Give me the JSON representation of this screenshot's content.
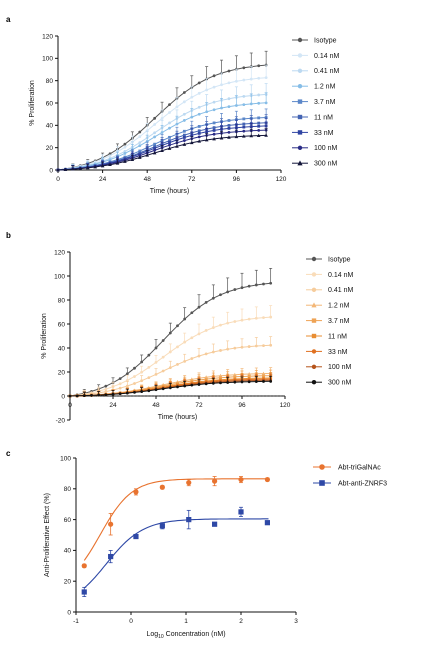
{
  "chart_data": [
    {
      "type": "line",
      "panel_label": "a",
      "xlabel": "Time (hours)",
      "ylabel": "% Proliferation",
      "xlim": [
        0,
        120
      ],
      "ylim": [
        0,
        120
      ],
      "xticks": [
        "0",
        "24",
        "48",
        "72",
        "96",
        "120"
      ],
      "yticks": [
        "0",
        "20",
        "40",
        "60",
        "80",
        "100",
        "120"
      ],
      "legend_position": "right",
      "series": [
        {
          "name": "Isotype",
          "color": "#555555",
          "marker": "circle",
          "final": 100
        },
        {
          "name": "0.14 nM",
          "color": "#d3e6f6",
          "marker": "circle",
          "final": 88
        },
        {
          "name": "0.41 nM",
          "color": "#bcd9f1",
          "marker": "circle",
          "final": 72
        },
        {
          "name": "1.2 nM",
          "color": "#86bde7",
          "marker": "circle",
          "final": 64
        },
        {
          "name": "3.7 nM",
          "color": "#5b87c9",
          "marker": "square",
          "final": 50
        },
        {
          "name": "11 nM",
          "color": "#4464b3",
          "marker": "square",
          "final": 45
        },
        {
          "name": "33 nM",
          "color": "#2f43a2",
          "marker": "square",
          "final": 42
        },
        {
          "name": "100 nM",
          "color": "#2a2c86",
          "marker": "circle",
          "final": 38
        },
        {
          "name": "300 nM",
          "color": "#14163a",
          "marker": "triangle",
          "final": 33
        }
      ]
    },
    {
      "type": "line",
      "panel_label": "b",
      "xlabel": "Time (hours)",
      "ylabel": "% Proliferation",
      "xlim": [
        0,
        120
      ],
      "ylim": [
        -20,
        120
      ],
      "xticks": [
        "0",
        "24",
        "48",
        "72",
        "96",
        "120"
      ],
      "yticks": [
        "-20",
        "0",
        "20",
        "40",
        "60",
        "80",
        "100",
        "120"
      ],
      "legend_position": "right",
      "series": [
        {
          "name": "Isotype",
          "color": "#555555",
          "marker": "circle",
          "final": 100
        },
        {
          "name": "0.14 nM",
          "color": "#f9dcb9",
          "marker": "circle",
          "final": 70
        },
        {
          "name": "0.41 nM",
          "color": "#f6cc9c",
          "marker": "circle",
          "final": 45
        },
        {
          "name": "1.2 nM",
          "color": "#f3b777",
          "marker": "triangle",
          "final": 20
        },
        {
          "name": "3.7 nM",
          "color": "#eea355",
          "marker": "square",
          "final": 18
        },
        {
          "name": "11 nM",
          "color": "#e88d32",
          "marker": "square",
          "final": 16
        },
        {
          "name": "33 nM",
          "color": "#e07020",
          "marker": "circle",
          "final": 15
        },
        {
          "name": "100 nM",
          "color": "#b5541b",
          "marker": "circle",
          "final": 14
        },
        {
          "name": "300 nM",
          "color": "#111111",
          "marker": "circle",
          "final": 13
        }
      ]
    },
    {
      "type": "scatter",
      "panel_label": "c",
      "xlabel_prefix": "Log",
      "xlabel_sub": "10",
      "xlabel_suffix": " Concentration (nM)",
      "ylabel": "Anti-Proliferative Effect (%)",
      "xlim": [
        -1,
        3
      ],
      "ylim": [
        0,
        100
      ],
      "xticks": [
        "-1",
        "0",
        "1",
        "2",
        "3"
      ],
      "yticks": [
        "0",
        "20",
        "40",
        "60",
        "80",
        "100"
      ],
      "legend_position": "top-right",
      "series": [
        {
          "name": "Abt-triGalNAc",
          "color": "#e8732f",
          "marker": "circle",
          "x": [
            -0.85,
            -0.37,
            0.09,
            0.57,
            1.05,
            1.52,
            2.0,
            2.48
          ],
          "y": [
            30,
            57,
            78,
            81,
            84,
            85,
            86,
            86
          ],
          "err": [
            1,
            7,
            2,
            1,
            2,
            3,
            2,
            1
          ],
          "fit": {
            "bottom": 14,
            "top": 86.5,
            "log_ec50": -0.56,
            "hill": 1.5
          }
        },
        {
          "name": "Abt-anti-ZNRF3",
          "color": "#2e48a6",
          "marker": "square",
          "x": [
            -0.85,
            -0.37,
            0.09,
            0.57,
            1.05,
            1.52,
            2.0,
            2.48
          ],
          "y": [
            13,
            36,
            49,
            56,
            60,
            57,
            65,
            58
          ],
          "err": [
            3,
            4,
            1,
            2,
            6,
            1,
            3,
            1
          ],
          "fit": {
            "bottom": 2,
            "top": 60.5,
            "log_ec50": -0.45,
            "hill": 1.3
          }
        }
      ]
    }
  ]
}
